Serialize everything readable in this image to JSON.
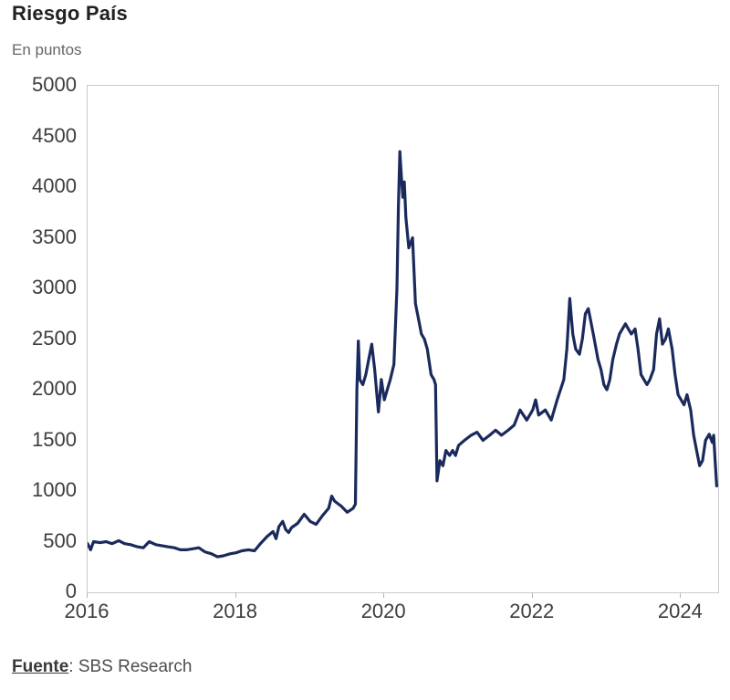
{
  "chart": {
    "title": "Riesgo País",
    "subtitle": "En puntos",
    "source_label": "Fuente",
    "source_rest": ": SBS Research"
  },
  "chart_data": {
    "type": "line",
    "title": "Riesgo País",
    "subtitle": "En puntos",
    "source": "Fuente: SBS Research",
    "series_name": "Riesgo País (puntos)",
    "xlabel": "",
    "ylabel": "En puntos",
    "xlim": [
      2016,
      2024.5
    ],
    "ylim": [
      0,
      5000
    ],
    "x_ticks": [
      2016,
      2018,
      2020,
      2022,
      2024
    ],
    "y_ticks": [
      0,
      500,
      1000,
      1500,
      2000,
      2500,
      3000,
      3500,
      4000,
      4500,
      5000
    ],
    "grid": false,
    "legend": "none",
    "line_color": "#1b2a5c",
    "x": [
      2016.0,
      2016.04,
      2016.08,
      2016.17,
      2016.25,
      2016.33,
      2016.42,
      2016.5,
      2016.58,
      2016.67,
      2016.75,
      2016.83,
      2016.92,
      2017.0,
      2017.08,
      2017.17,
      2017.25,
      2017.33,
      2017.42,
      2017.5,
      2017.58,
      2017.67,
      2017.75,
      2017.83,
      2017.92,
      2018.0,
      2018.08,
      2018.17,
      2018.25,
      2018.33,
      2018.42,
      2018.5,
      2018.54,
      2018.58,
      2018.63,
      2018.67,
      2018.71,
      2018.75,
      2018.83,
      2018.92,
      2019.0,
      2019.08,
      2019.17,
      2019.25,
      2019.29,
      2019.33,
      2019.42,
      2019.5,
      2019.58,
      2019.61,
      2019.63,
      2019.65,
      2019.67,
      2019.71,
      2019.75,
      2019.79,
      2019.83,
      2019.87,
      2019.92,
      2019.96,
      2020.0,
      2020.04,
      2020.08,
      2020.13,
      2020.17,
      2020.19,
      2020.21,
      2020.23,
      2020.25,
      2020.27,
      2020.29,
      2020.33,
      2020.38,
      2020.42,
      2020.46,
      2020.5,
      2020.54,
      2020.58,
      2020.63,
      2020.67,
      2020.69,
      2020.71,
      2020.75,
      2020.79,
      2020.83,
      2020.88,
      2020.92,
      2020.96,
      2021.0,
      2021.08,
      2021.17,
      2021.25,
      2021.33,
      2021.42,
      2021.5,
      2021.58,
      2021.67,
      2021.75,
      2021.83,
      2021.92,
      2022.0,
      2022.04,
      2022.08,
      2022.17,
      2022.25,
      2022.33,
      2022.42,
      2022.46,
      2022.5,
      2022.54,
      2022.58,
      2022.63,
      2022.67,
      2022.71,
      2022.75,
      2022.79,
      2022.83,
      2022.88,
      2022.92,
      2022.96,
      2023.0,
      2023.04,
      2023.08,
      2023.13,
      2023.17,
      2023.21,
      2023.25,
      2023.29,
      2023.33,
      2023.38,
      2023.42,
      2023.46,
      2023.5,
      2023.54,
      2023.58,
      2023.63,
      2023.67,
      2023.71,
      2023.75,
      2023.79,
      2023.83,
      2023.88,
      2023.92,
      2023.96,
      2024.0,
      2024.04,
      2024.08,
      2024.13,
      2024.17,
      2024.21,
      2024.25,
      2024.29,
      2024.33,
      2024.38,
      2024.42,
      2024.44,
      2024.46,
      2024.48
    ],
    "y": [
      480,
      420,
      500,
      490,
      500,
      480,
      510,
      480,
      470,
      450,
      440,
      500,
      470,
      460,
      450,
      440,
      420,
      420,
      430,
      440,
      400,
      380,
      350,
      360,
      380,
      390,
      410,
      420,
      410,
      480,
      550,
      600,
      530,
      650,
      700,
      620,
      590,
      640,
      680,
      770,
      700,
      670,
      760,
      830,
      950,
      900,
      850,
      790,
      830,
      870,
      2000,
      2480,
      2100,
      2050,
      2150,
      2300,
      2450,
      2200,
      1780,
      2100,
      1900,
      2000,
      2100,
      2250,
      3000,
      3800,
      4350,
      4100,
      3900,
      4050,
      3700,
      3400,
      3500,
      2850,
      2700,
      2550,
      2500,
      2400,
      2150,
      2100,
      2050,
      1100,
      1300,
      1250,
      1400,
      1350,
      1400,
      1350,
      1450,
      1500,
      1550,
      1580,
      1500,
      1550,
      1600,
      1550,
      1600,
      1650,
      1800,
      1700,
      1800,
      1900,
      1750,
      1800,
      1700,
      1900,
      2100,
      2400,
      2900,
      2550,
      2400,
      2350,
      2500,
      2750,
      2800,
      2650,
      2500,
      2300,
      2200,
      2050,
      2000,
      2100,
      2300,
      2450,
      2550,
      2600,
      2650,
      2600,
      2550,
      2600,
      2400,
      2150,
      2100,
      2050,
      2100,
      2200,
      2550,
      2700,
      2450,
      2500,
      2600,
      2400,
      2150,
      1950,
      1900,
      1850,
      1950,
      1800,
      1550,
      1400,
      1250,
      1300,
      1500,
      1560,
      1480,
      1550,
      1300,
      1050
    ]
  }
}
